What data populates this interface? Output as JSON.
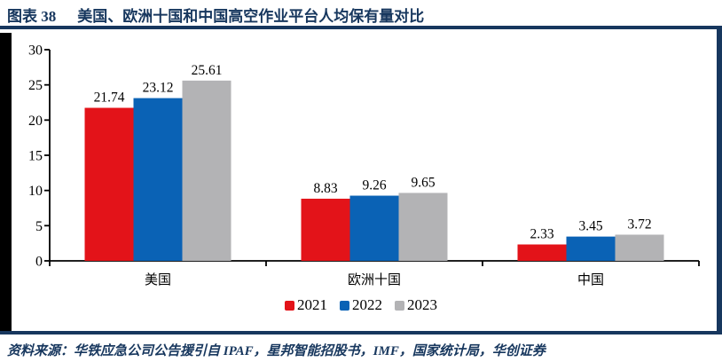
{
  "header": {
    "figure_label": "图表 38",
    "title": "美国、欧洲十国和中国高空作业平台人均保有量对比"
  },
  "chart_data": {
    "type": "bar",
    "title": "美国、欧洲十国和中国高空作业平台人均保有量对比",
    "categories": [
      "美国",
      "欧洲十国",
      "中国"
    ],
    "series": [
      {
        "name": "2021",
        "color": "#E31319",
        "values": [
          21.74,
          8.83,
          2.33
        ]
      },
      {
        "name": "2022",
        "color": "#0A62B5",
        "values": [
          23.12,
          9.26,
          3.45
        ]
      },
      {
        "name": "2023",
        "color": "#B3B3B5",
        "values": [
          25.61,
          9.65,
          3.72
        ]
      }
    ],
    "xlabel": "",
    "ylabel": "",
    "ylim": [
      0,
      30
    ],
    "yticks": [
      0,
      5,
      10,
      15,
      20,
      25,
      30
    ],
    "grid": false,
    "value_labels": true,
    "legend_position": "bottom"
  },
  "footer": {
    "source": "资料来源：华铁应急公司公告援引自 IPAF，星邦智能招股书，IMF，国家统计局，华创证券"
  },
  "colors": {
    "accent_navy": "#17375E",
    "accent_black": "#000000",
    "axis_color": "#000000",
    "label_text": "#000000"
  }
}
